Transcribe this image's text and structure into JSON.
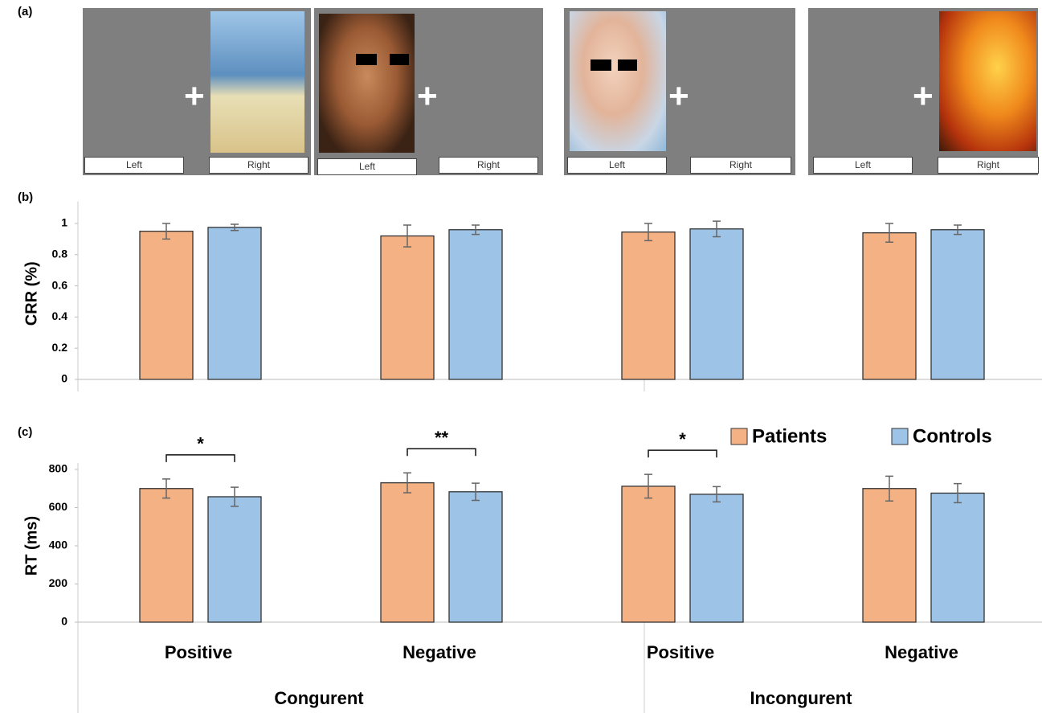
{
  "panel_a": {
    "label": "(a)",
    "screens": [
      {
        "left": "Left",
        "right": "Right"
      },
      {
        "left": "Left",
        "right": "Right"
      },
      {
        "left": "Left",
        "right": "Right"
      },
      {
        "left": "Left",
        "right": "Right"
      }
    ]
  },
  "chart_data": [
    {
      "type": "bar",
      "panel_label": "(b)",
      "y_label": "CRR (%)",
      "categories": [
        null,
        null,
        null,
        null
      ],
      "series": [
        {
          "name": "Patients",
          "color": "#f4b183",
          "values": [
            0.95,
            0.92,
            0.945,
            0.94
          ],
          "errors": [
            0.05,
            0.07,
            0.055,
            0.06
          ]
        },
        {
          "name": "Controls",
          "color": "#9dc3e6",
          "values": [
            0.975,
            0.96,
            0.965,
            0.96
          ],
          "errors": [
            0.02,
            0.03,
            0.05,
            0.03
          ]
        }
      ],
      "ylim": [
        0,
        1.1
      ],
      "yticks": [
        0,
        0.2,
        0.4,
        0.6,
        0.8,
        1
      ],
      "legend": false
    },
    {
      "type": "bar",
      "panel_label": "(c)",
      "y_label": "RT (ms)",
      "categories": [
        "Positive",
        "Negative",
        "Positive",
        "Negative"
      ],
      "groups": [
        "Congurent",
        "Incongurent"
      ],
      "series": [
        {
          "name": "Patients",
          "color": "#f4b183",
          "values": [
            700,
            730,
            712,
            700
          ],
          "errors": [
            50,
            52,
            62,
            65
          ]
        },
        {
          "name": "Controls",
          "color": "#9dc3e6",
          "values": [
            657,
            683,
            670,
            676
          ],
          "errors": [
            50,
            45,
            40,
            50
          ]
        }
      ],
      "significance": [
        "*",
        "**",
        "*",
        null
      ],
      "ylim": [
        0,
        800
      ],
      "yticks": [
        0,
        200,
        400,
        600,
        800
      ],
      "legend": "top-right"
    }
  ]
}
